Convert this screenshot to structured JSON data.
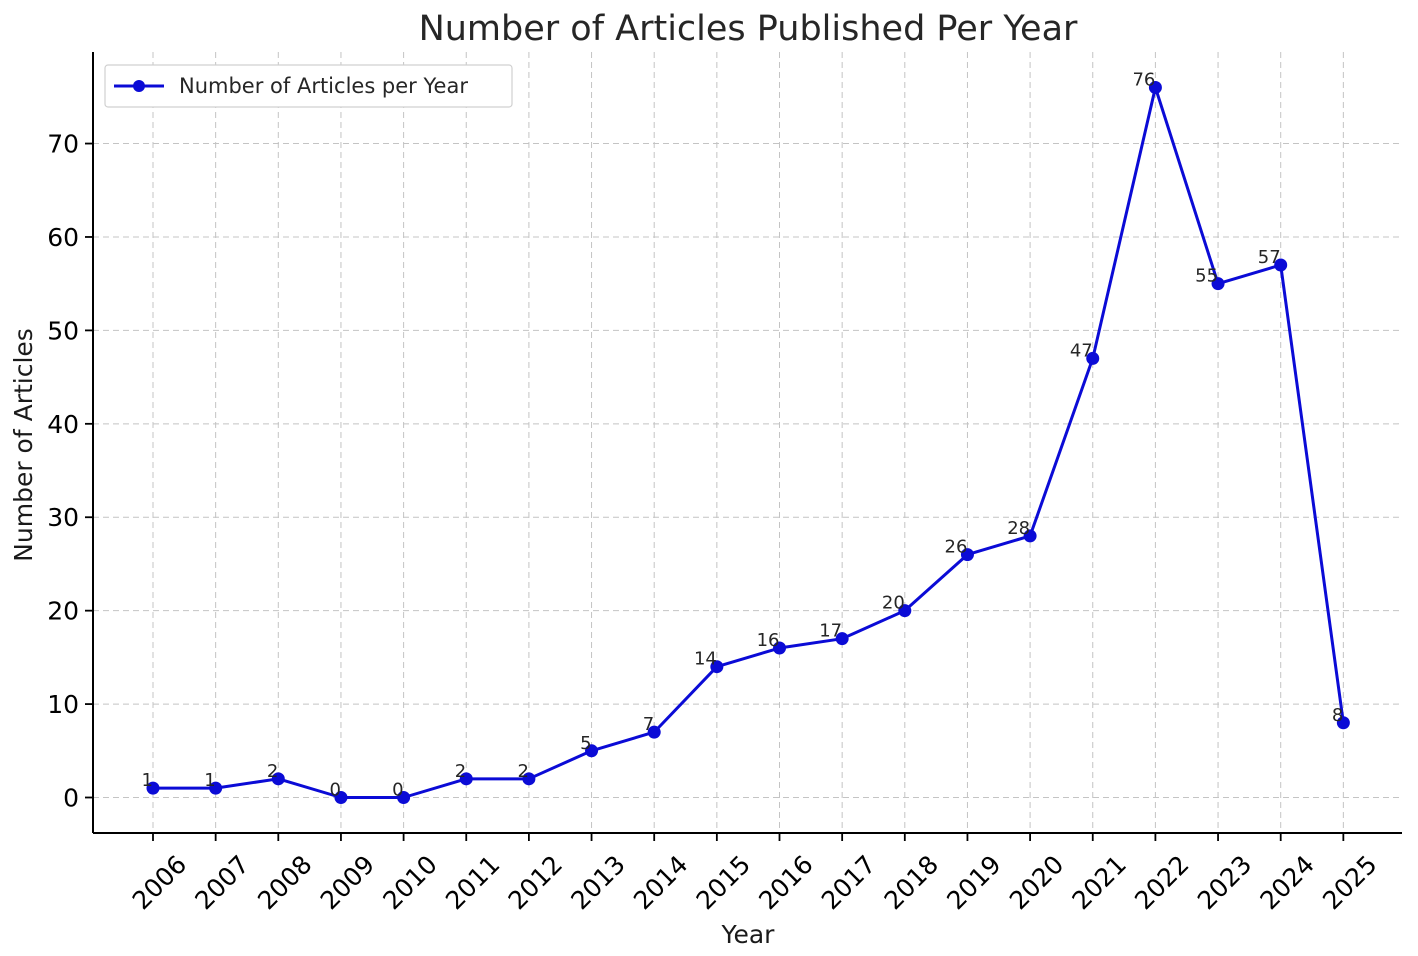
{
  "chart_data": {
    "type": "line",
    "title": "Number of Articles Published Per Year",
    "xlabel": "Year",
    "ylabel": "Number of Articles",
    "categories": [
      "2006",
      "2007",
      "2008",
      "2009",
      "2010",
      "2011",
      "2012",
      "2013",
      "2014",
      "2015",
      "2016",
      "2017",
      "2018",
      "2019",
      "2020",
      "2021",
      "2022",
      "2023",
      "2024",
      "2025"
    ],
    "series": [
      {
        "name": "Number of Articles per Year",
        "values": [
          1,
          1,
          2,
          0,
          0,
          2,
          2,
          5,
          7,
          14,
          16,
          17,
          20,
          26,
          28,
          47,
          76,
          55,
          57,
          8
        ],
        "color": "#0b0bd6"
      }
    ],
    "data_labels": [
      "1",
      "1",
      "2",
      "0",
      "0",
      "2",
      "2",
      "5",
      "7",
      "14",
      "16",
      "17",
      "20",
      "26",
      "28",
      "47",
      "76",
      "55",
      "57",
      "8"
    ],
    "ylim": [
      -3.8,
      79.8
    ],
    "yticks": [
      0,
      10,
      20,
      30,
      40,
      50,
      60,
      70
    ],
    "ytick_labels": [
      "0",
      "10",
      "20",
      "30",
      "40",
      "50",
      "60",
      "70"
    ],
    "grid": true,
    "legend_position": "top-left",
    "marker": "circle"
  }
}
